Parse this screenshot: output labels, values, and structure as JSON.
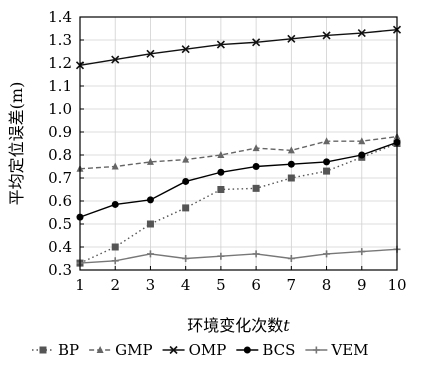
{
  "chart_data": {
    "type": "line",
    "title": "",
    "xlabel": "环境变化次数",
    "xlabel_var": "t",
    "ylabel": "平均定位误差(m)",
    "x": [
      1,
      2,
      3,
      4,
      5,
      6,
      7,
      8,
      9,
      10
    ],
    "xlim": [
      1,
      10
    ],
    "ylim": [
      0.3,
      1.4
    ],
    "yticks": [
      "0.3",
      "0.4",
      "0.5",
      "0.6",
      "0.7",
      "0.8",
      "0.9",
      "1.0",
      "1.1",
      "1.2",
      "1.3",
      "1.4"
    ],
    "xticks": [
      "1",
      "2",
      "3",
      "4",
      "5",
      "6",
      "7",
      "8",
      "9",
      "10"
    ],
    "grid": true,
    "legend_position": "bottom",
    "series": [
      {
        "name": "BP",
        "color": "#555555",
        "dash": "dotted",
        "marker": "square",
        "values": [
          0.33,
          0.4,
          0.5,
          0.57,
          0.65,
          0.655,
          0.7,
          0.73,
          0.79,
          0.85
        ]
      },
      {
        "name": "GMP",
        "color": "#666666",
        "dash": "dashed",
        "marker": "triangle",
        "values": [
          0.74,
          0.75,
          0.77,
          0.78,
          0.8,
          0.83,
          0.82,
          0.86,
          0.86,
          0.88
        ]
      },
      {
        "name": "OMP",
        "color": "#111111",
        "dash": "solid",
        "marker": "x",
        "values": [
          1.19,
          1.215,
          1.24,
          1.26,
          1.28,
          1.29,
          1.305,
          1.32,
          1.33,
          1.345
        ]
      },
      {
        "name": "BCS",
        "color": "#000000",
        "dash": "solid",
        "marker": "circle",
        "values": [
          0.53,
          0.585,
          0.605,
          0.685,
          0.725,
          0.75,
          0.76,
          0.77,
          0.8,
          0.855
        ]
      },
      {
        "name": "VEM",
        "color": "#777777",
        "dash": "solid",
        "marker": "plus",
        "values": [
          0.33,
          0.34,
          0.37,
          0.35,
          0.36,
          0.37,
          0.35,
          0.37,
          0.38,
          0.39
        ]
      }
    ]
  }
}
